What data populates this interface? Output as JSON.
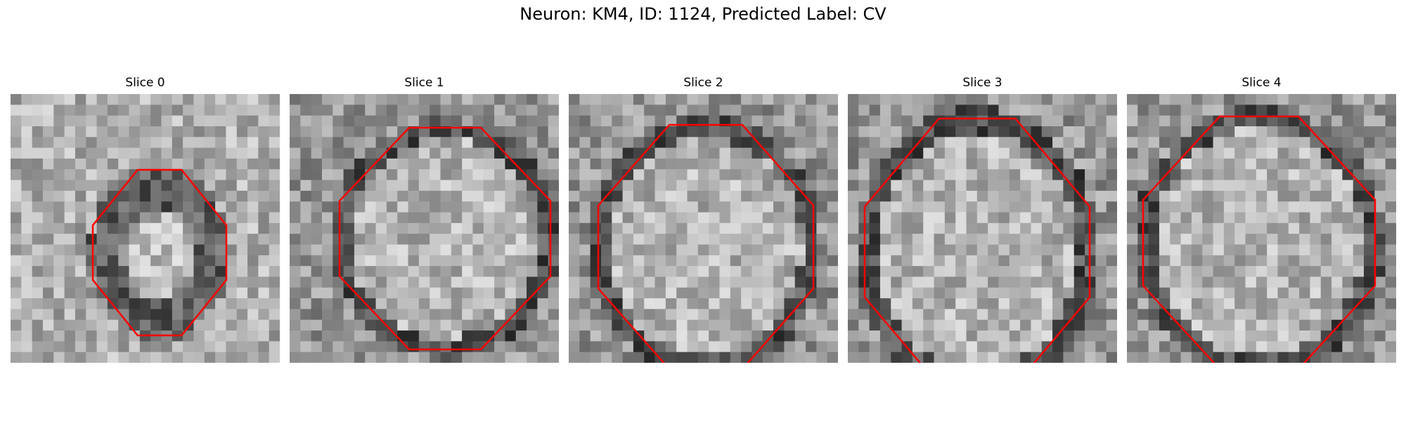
{
  "figure": {
    "title": "Neuron: KM4, ID: 1124, Predicted Label: CV"
  },
  "slices": [
    {
      "title": "Slice 0"
    },
    {
      "title": "Slice 1"
    },
    {
      "title": "Slice 2"
    },
    {
      "title": "Slice 3"
    },
    {
      "title": "Slice 4"
    }
  ],
  "colors": {
    "contour": "#ff0000",
    "background": "#ffffff",
    "colormap": "grayscale"
  }
}
